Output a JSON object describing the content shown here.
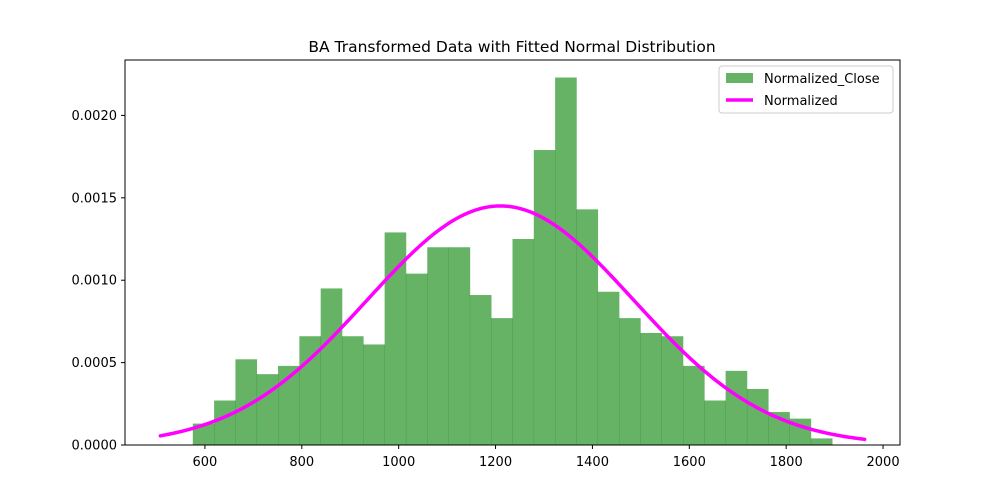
{
  "chart_data": {
    "type": "bar",
    "title": "BA Transformed Data with Fitted Normal Distribution",
    "xlabel": "",
    "ylabel": "",
    "xlim": [
      435,
      2035
    ],
    "ylim": [
      0,
      0.0023363
    ],
    "xticks": [
      600,
      800,
      1000,
      1200,
      1400,
      1600,
      1800,
      2000
    ],
    "xtick_labels": [
      "600",
      "800",
      "1000",
      "1200",
      "1400",
      "1600",
      "1800",
      "2000"
    ],
    "yticks": [
      0,
      0.0005,
      0.001,
      0.0015,
      0.002
    ],
    "ytick_labels": [
      "0.0000",
      "0.0005",
      "0.0010",
      "0.0015",
      "0.0020"
    ],
    "grid": false,
    "legend_position": "upper right",
    "histogram": {
      "name": "Normalized_Close",
      "color": "#008000",
      "opacity": 0.6,
      "bin_edges": [
        575,
        619,
        663,
        707,
        751,
        795,
        839,
        883,
        927,
        971,
        1015,
        1059,
        1103,
        1147,
        1191,
        1235,
        1279,
        1323,
        1367,
        1411,
        1455,
        1499,
        1543,
        1587,
        1631,
        1675,
        1719,
        1763,
        1807,
        1851,
        1895
      ],
      "values": [
        0.00013,
        0.00027,
        0.00052,
        0.00043,
        0.00048,
        0.00066,
        0.00095,
        0.00066,
        0.00061,
        0.00129,
        0.00104,
        0.0012,
        0.0012,
        0.00091,
        0.00077,
        0.00125,
        0.00179,
        0.00223,
        0.00143,
        0.00093,
        0.00077,
        0.00068,
        0.00066,
        0.00048,
        0.00027,
        0.00045,
        0.00034,
        0.0002,
        0.00016,
        4e-05
      ]
    },
    "curve": {
      "name": "Normalized",
      "color": "#ff00ff",
      "mean": 1210,
      "std": 275,
      "x_range": [
        508,
        1962
      ]
    }
  }
}
